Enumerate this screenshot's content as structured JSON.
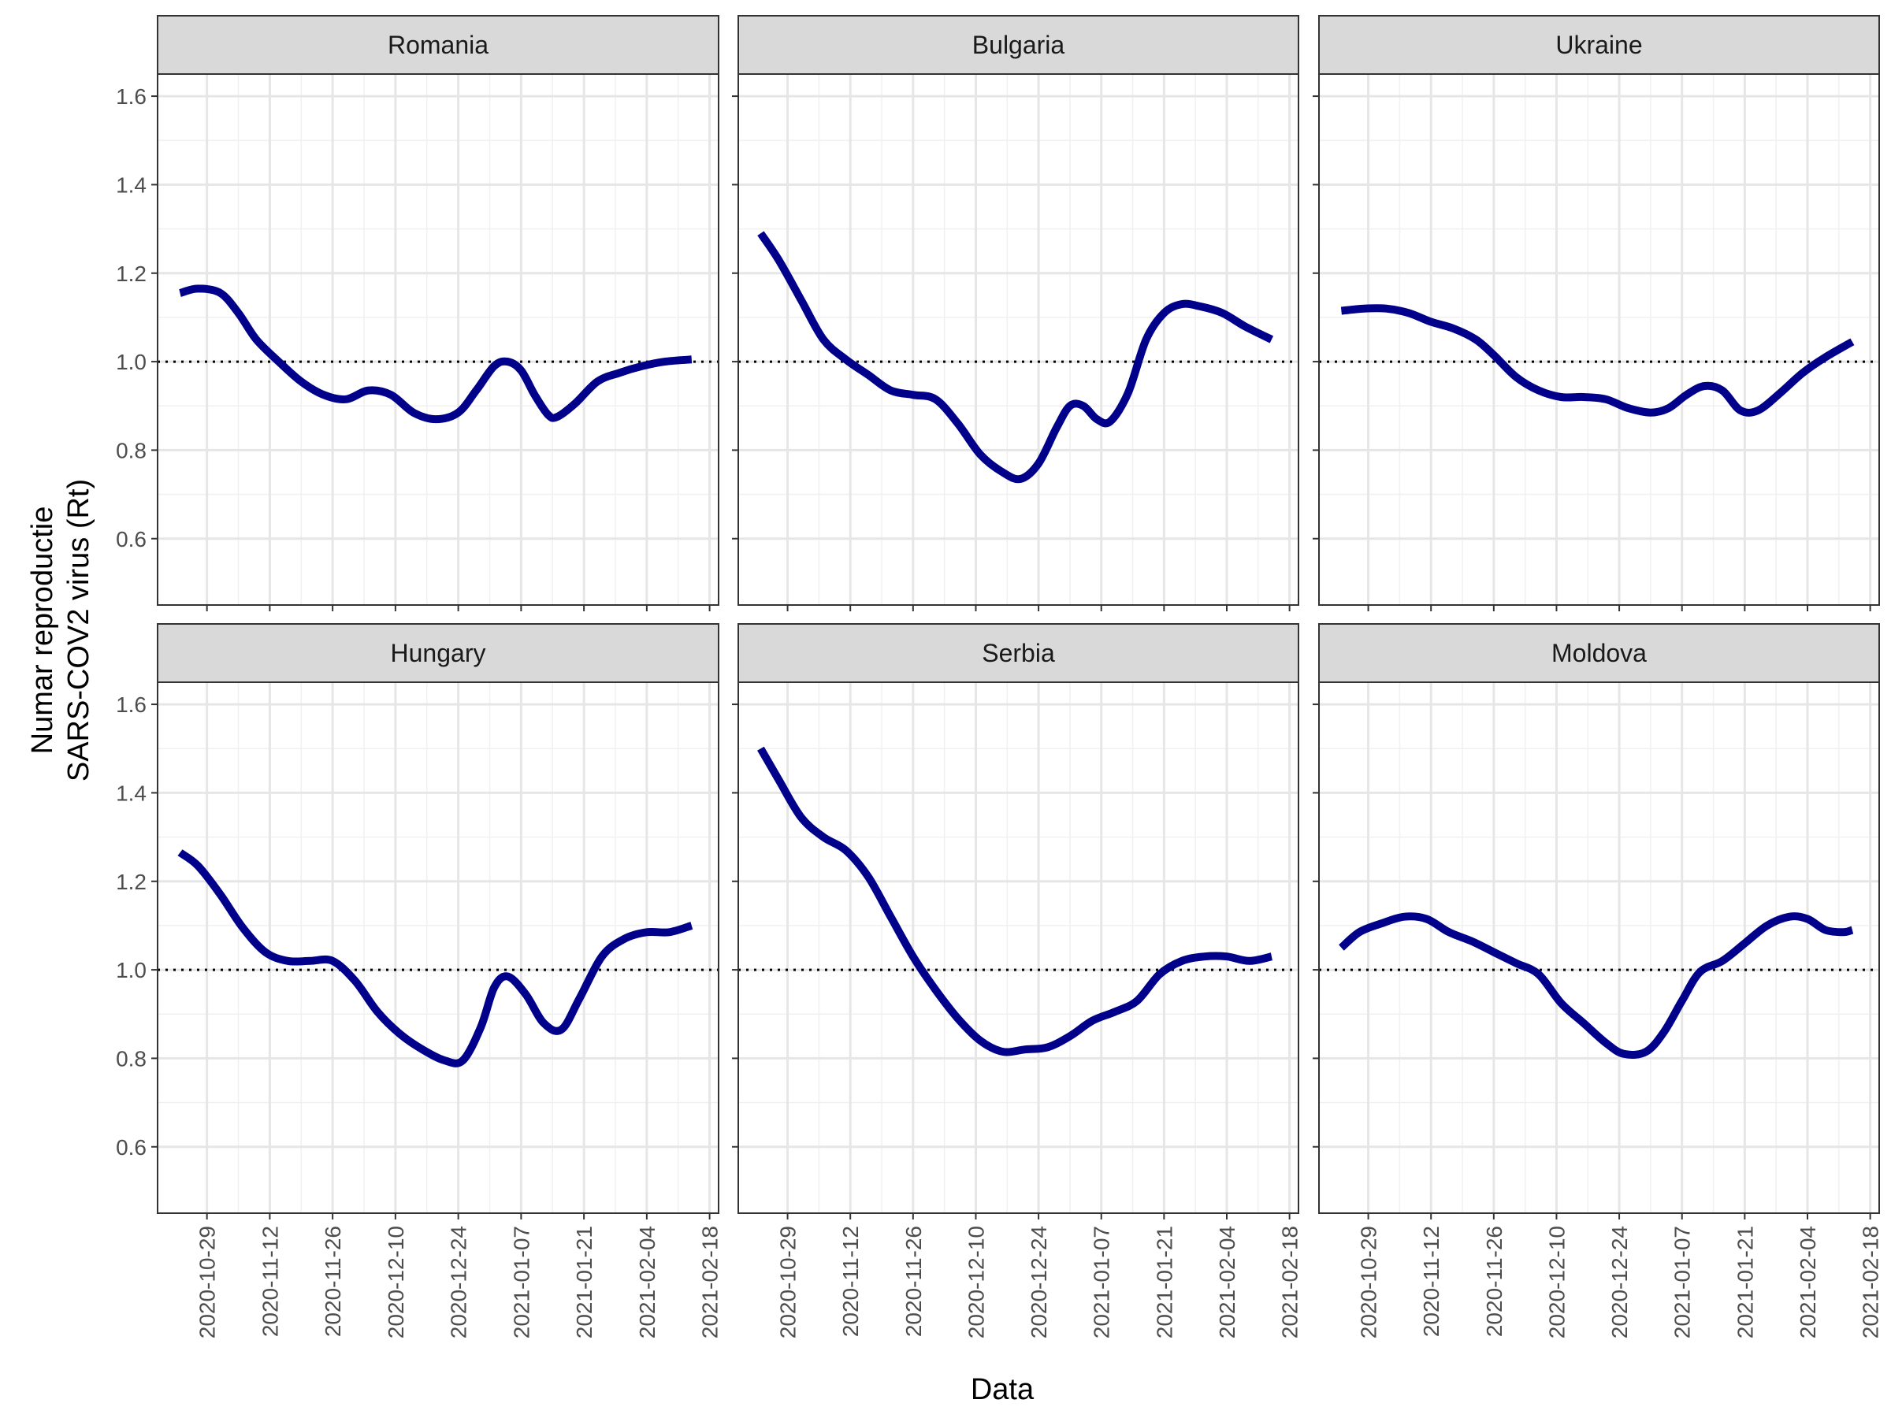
{
  "chart_data": {
    "type": "line",
    "xlabel": "Data",
    "ylabel_lines": [
      "Numar reproductie",
      "SARS-COV2 virus (Rt)"
    ],
    "x_ticks": [
      "2020-10-29",
      "2020-11-12",
      "2020-11-26",
      "2020-12-10",
      "2020-12-24",
      "2021-01-07",
      "2021-01-21",
      "2021-02-04",
      "2021-02-18"
    ],
    "y_ticks": [
      "0.6",
      "0.8",
      "1.0",
      "1.2",
      "1.4",
      "1.6"
    ],
    "ylim": [
      0.45,
      1.65
    ],
    "xlim": [
      "2020-10-18",
      "2021-02-20"
    ],
    "reference_line": 1.0,
    "line_color": "#00008B",
    "grid": true,
    "panels": [
      {
        "name": "Romania",
        "series": {
          "x": [
            "2020-10-23",
            "2020-10-27",
            "2020-11-01",
            "2020-11-05",
            "2020-11-09",
            "2020-11-14",
            "2020-11-19",
            "2020-11-24",
            "2020-11-29",
            "2020-12-04",
            "2020-12-09",
            "2020-12-14",
            "2020-12-19",
            "2020-12-24",
            "2020-12-28",
            "2021-01-01",
            "2021-01-04",
            "2021-01-07",
            "2021-01-10",
            "2021-01-13",
            "2021-01-15",
            "2021-01-19",
            "2021-01-24",
            "2021-01-29",
            "2021-02-03",
            "2021-02-08",
            "2021-02-14"
          ],
          "y": [
            1.155,
            1.165,
            1.155,
            1.11,
            1.05,
            1.0,
            0.955,
            0.925,
            0.915,
            0.935,
            0.925,
            0.885,
            0.87,
            0.885,
            0.935,
            0.99,
            1.0,
            0.98,
            0.925,
            0.88,
            0.875,
            0.905,
            0.955,
            0.975,
            0.99,
            1.0,
            1.005
          ]
        }
      },
      {
        "name": "Bulgaria",
        "series": {
          "x": [
            "2020-10-23",
            "2020-10-27",
            "2020-11-01",
            "2020-11-06",
            "2020-11-11",
            "2020-11-16",
            "2020-11-21",
            "2020-11-26",
            "2020-12-01",
            "2020-12-06",
            "2020-12-11",
            "2020-12-16",
            "2020-12-20",
            "2020-12-24",
            "2020-12-28",
            "2020-12-31",
            "2021-01-03",
            "2021-01-06",
            "2021-01-09",
            "2021-01-13",
            "2021-01-17",
            "2021-01-21",
            "2021-01-25",
            "2021-01-29",
            "2021-02-03",
            "2021-02-08",
            "2021-02-14"
          ],
          "y": [
            1.29,
            1.23,
            1.14,
            1.05,
            1.005,
            0.97,
            0.935,
            0.925,
            0.915,
            0.86,
            0.79,
            0.75,
            0.735,
            0.77,
            0.85,
            0.9,
            0.9,
            0.87,
            0.865,
            0.93,
            1.05,
            1.11,
            1.13,
            1.125,
            1.11,
            1.08,
            1.05
          ]
        }
      },
      {
        "name": "Ukraine",
        "series": {
          "x": [
            "2020-10-23",
            "2020-10-28",
            "2020-11-02",
            "2020-11-07",
            "2020-11-12",
            "2020-11-17",
            "2020-11-22",
            "2020-11-26",
            "2020-12-01",
            "2020-12-06",
            "2020-12-11",
            "2020-12-16",
            "2020-12-21",
            "2020-12-26",
            "2020-12-31",
            "2021-01-04",
            "2021-01-08",
            "2021-01-12",
            "2021-01-16",
            "2021-01-20",
            "2021-01-24",
            "2021-01-29",
            "2021-02-03",
            "2021-02-08",
            "2021-02-14"
          ],
          "y": [
            1.115,
            1.12,
            1.12,
            1.11,
            1.09,
            1.075,
            1.05,
            1.015,
            0.965,
            0.935,
            0.92,
            0.92,
            0.915,
            0.895,
            0.885,
            0.895,
            0.925,
            0.945,
            0.935,
            0.89,
            0.89,
            0.93,
            0.975,
            1.01,
            1.045
          ]
        }
      },
      {
        "name": "Hungary",
        "series": {
          "x": [
            "2020-10-23",
            "2020-10-27",
            "2020-11-01",
            "2020-11-06",
            "2020-11-11",
            "2020-11-16",
            "2020-11-21",
            "2020-11-26",
            "2020-12-01",
            "2020-12-06",
            "2020-12-11",
            "2020-12-16",
            "2020-12-21",
            "2020-12-25",
            "2020-12-29",
            "2021-01-01",
            "2021-01-04",
            "2021-01-08",
            "2021-01-12",
            "2021-01-16",
            "2021-01-20",
            "2021-01-25",
            "2021-01-30",
            "2021-02-04",
            "2021-02-09",
            "2021-02-14"
          ],
          "y": [
            1.265,
            1.235,
            1.17,
            1.095,
            1.04,
            1.02,
            1.02,
            1.02,
            0.975,
            0.905,
            0.855,
            0.82,
            0.795,
            0.795,
            0.87,
            0.96,
            0.985,
            0.945,
            0.88,
            0.865,
            0.935,
            1.03,
            1.07,
            1.085,
            1.085,
            1.1
          ]
        }
      },
      {
        "name": "Serbia",
        "series": {
          "x": [
            "2020-10-23",
            "2020-10-27",
            "2020-11-01",
            "2020-11-06",
            "2020-11-11",
            "2020-11-16",
            "2020-11-21",
            "2020-11-26",
            "2020-12-01",
            "2020-12-06",
            "2020-12-11",
            "2020-12-16",
            "2020-12-21",
            "2020-12-26",
            "2020-12-31",
            "2021-01-05",
            "2021-01-10",
            "2021-01-15",
            "2021-01-20",
            "2021-01-25",
            "2021-01-30",
            "2021-02-04",
            "2021-02-09",
            "2021-02-14"
          ],
          "y": [
            1.5,
            1.43,
            1.345,
            1.3,
            1.27,
            1.21,
            1.12,
            1.03,
            0.955,
            0.89,
            0.84,
            0.815,
            0.82,
            0.825,
            0.85,
            0.885,
            0.905,
            0.93,
            0.99,
            1.02,
            1.03,
            1.03,
            1.02,
            1.03
          ]
        }
      },
      {
        "name": "Moldova",
        "series": {
          "x": [
            "2020-10-23",
            "2020-10-27",
            "2020-11-01",
            "2020-11-06",
            "2020-11-11",
            "2020-11-16",
            "2020-11-21",
            "2020-11-26",
            "2020-12-01",
            "2020-12-06",
            "2020-12-11",
            "2020-12-16",
            "2020-12-21",
            "2020-12-25",
            "2020-12-30",
            "2021-01-03",
            "2021-01-07",
            "2021-01-11",
            "2021-01-16",
            "2021-01-21",
            "2021-01-26",
            "2021-01-31",
            "2021-02-04",
            "2021-02-08",
            "2021-02-12",
            "2021-02-14"
          ],
          "y": [
            1.05,
            1.085,
            1.105,
            1.12,
            1.115,
            1.085,
            1.065,
            1.04,
            1.015,
            0.99,
            0.925,
            0.88,
            0.835,
            0.81,
            0.815,
            0.86,
            0.93,
            0.995,
            1.02,
            1.06,
            1.1,
            1.12,
            1.115,
            1.09,
            1.085,
            1.09
          ]
        }
      }
    ]
  }
}
